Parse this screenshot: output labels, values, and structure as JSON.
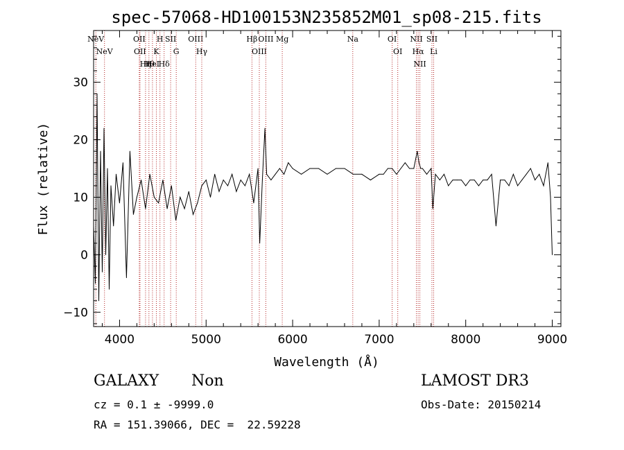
{
  "chart_data": {
    "type": "line",
    "title": "spec-57068-HD100153N235852M01_sp08-215.fits",
    "xlabel": "Wavelength (Å)",
    "ylabel": "Flux (relative)",
    "xlim": [
      3700,
      9100
    ],
    "ylim": [
      -12.5,
      39
    ],
    "x_ticks": [
      4000,
      5000,
      6000,
      7000,
      8000,
      9000
    ],
    "y_ticks": [
      -10,
      0,
      10,
      20,
      30
    ],
    "x_tick_labels": [
      "4000",
      "5000",
      "6000",
      "7000",
      "8000",
      "9000"
    ],
    "y_tick_labels": [
      "−10",
      "0",
      "10",
      "20",
      "30"
    ],
    "grid": false,
    "line_color": "#000000",
    "marker_color": "#b22222",
    "series": [
      {
        "name": "flux",
        "x": [
          3700,
          3720,
          3740,
          3760,
          3780,
          3800,
          3820,
          3840,
          3860,
          3880,
          3900,
          3930,
          3960,
          4000,
          4040,
          4080,
          4120,
          4160,
          4200,
          4250,
          4300,
          4350,
          4400,
          4450,
          4500,
          4550,
          4600,
          4650,
          4700,
          4750,
          4800,
          4850,
          4900,
          4950,
          5000,
          5050,
          5100,
          5150,
          5200,
          5250,
          5300,
          5350,
          5400,
          5450,
          5500,
          5550,
          5600,
          5620,
          5650,
          5680,
          5700,
          5750,
          5800,
          5850,
          5900,
          5950,
          6000,
          6100,
          6200,
          6300,
          6400,
          6500,
          6600,
          6700,
          6800,
          6900,
          7000,
          7050,
          7100,
          7150,
          7200,
          7250,
          7300,
          7350,
          7400,
          7440,
          7460,
          7480,
          7500,
          7550,
          7600,
          7620,
          7650,
          7700,
          7750,
          7800,
          7850,
          7900,
          7950,
          8000,
          8050,
          8100,
          8150,
          8200,
          8250,
          8300,
          8350,
          8400,
          8450,
          8500,
          8550,
          8600,
          8650,
          8700,
          8750,
          8800,
          8850,
          8900,
          8950,
          8980,
          9000
        ],
        "y": [
          5,
          -5,
          28,
          -8,
          18,
          -3,
          22,
          0,
          15,
          -6,
          12,
          5,
          14,
          9,
          16,
          -4,
          18,
          7,
          10,
          13,
          8,
          14,
          10,
          9,
          13,
          8,
          12,
          6,
          10,
          8,
          11,
          7,
          9,
          12,
          13,
          10,
          14,
          11,
          13,
          12,
          14,
          11,
          13,
          12,
          14,
          9,
          15,
          2,
          13,
          22,
          14,
          13,
          14,
          15,
          14,
          16,
          15,
          14,
          15,
          15,
          14,
          15,
          15,
          14,
          14,
          13,
          14,
          14,
          15,
          15,
          14,
          15,
          16,
          15,
          15,
          18,
          16,
          15,
          15,
          14,
          15,
          8,
          14,
          13,
          14,
          12,
          13,
          13,
          13,
          12,
          13,
          13,
          12,
          13,
          13,
          14,
          5,
          13,
          13,
          12,
          14,
          12,
          13,
          14,
          15,
          13,
          14,
          12,
          16,
          10,
          0
        ]
      }
    ],
    "line_markers": [
      {
        "label": "NeV",
        "wavelength": 3726
      },
      {
        "label": "NeV",
        "wavelength": 3826
      },
      {
        "label": "OII",
        "wavelength": 4228
      },
      {
        "label": "OII",
        "wavelength": 4236
      },
      {
        "label": "Hη",
        "wavelength": 4300
      },
      {
        "label": "Hθ",
        "wavelength": 4339
      },
      {
        "label": "H",
        "wavelength": 4467
      },
      {
        "label": "K",
        "wavelength": 4425
      },
      {
        "label": "HeI",
        "wavelength": 4380
      },
      {
        "label": "Hδ",
        "wavelength": 4515
      },
      {
        "label": "SII",
        "wavelength": 4590
      },
      {
        "label": "G",
        "wavelength": 4655
      },
      {
        "label": "OIII",
        "wavelength": 4880
      },
      {
        "label": "Hγ",
        "wavelength": 4950
      },
      {
        "label": "Hβ",
        "wavelength": 5530
      },
      {
        "label": "OIII",
        "wavelength": 5615
      },
      {
        "label": "OIII",
        "wavelength": 5690
      },
      {
        "label": "Mg",
        "wavelength": 5880
      },
      {
        "label": "Na",
        "wavelength": 6695
      },
      {
        "label": "OI",
        "wavelength": 7150
      },
      {
        "label": "OI",
        "wavelength": 7215
      },
      {
        "label": "NII",
        "wavelength": 7430
      },
      {
        "label": "Hα",
        "wavelength": 7450
      },
      {
        "label": "NII",
        "wavelength": 7470
      },
      {
        "label": "SII",
        "wavelength": 7610
      },
      {
        "label": "Li",
        "wavelength": 7630
      }
    ]
  },
  "info": {
    "class_label": "GALAXY",
    "subclass_label": "Non",
    "survey": "LAMOST DR3",
    "cz_line": "cz = 0.1 ± -9999.0",
    "obs_date_line": "Obs-Date: 20150214",
    "radec_line": "RA = 151.39066, DEC =  22.59228"
  }
}
